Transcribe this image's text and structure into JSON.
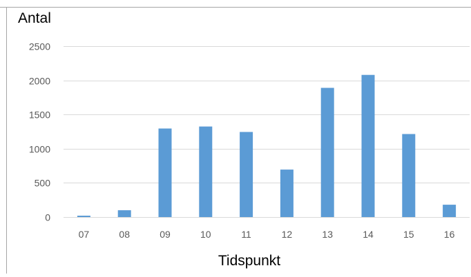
{
  "chart_data": {
    "type": "bar",
    "ylabel": "Antal",
    "xlabel": "Tidspunkt",
    "categories": [
      "07",
      "08",
      "09",
      "10",
      "11",
      "12",
      "13",
      "14",
      "15",
      "16"
    ],
    "values": [
      20,
      100,
      1295,
      1325,
      1245,
      695,
      1890,
      2080,
      1215,
      180
    ],
    "ylim": [
      0,
      2500
    ],
    "yticks": [
      0,
      500,
      1000,
      1500,
      2000,
      2500
    ],
    "grid": true,
    "bar_color": "#5b9bd5",
    "grid_color": "#d9d9d9",
    "text_color": "#595959"
  }
}
